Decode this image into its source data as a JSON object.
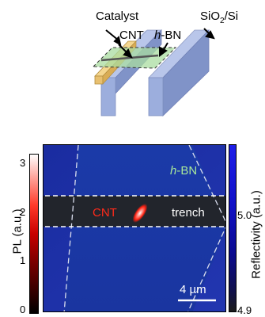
{
  "schematic": {
    "catalyst_label": "Catalyst",
    "cnt_label": "CNT",
    "hbn_label_italic": "h",
    "hbn_label_rest": "-BN",
    "substrate_main": "SiO",
    "substrate_sub": "2",
    "substrate_tail": "/Si",
    "colors": {
      "pillar": "#94a6d4",
      "catalyst": "#f2d28c",
      "hbn": "#a9dca0"
    }
  },
  "map": {
    "cnt_label": "CNT",
    "trench_label": "trench",
    "hbn_label_italic": "h",
    "hbn_label_rest": "-BN",
    "scalebar_label": "4 µm",
    "colors": {
      "substrate": "#1c2fa6",
      "trench": "#22252c",
      "cnt": "#ff2a1a",
      "hbn_text": "#a8e89a"
    }
  },
  "pl_colorbar": {
    "title": "PL (a.u.)",
    "ticks": [
      "3",
      "2",
      "1",
      "0"
    ],
    "range": [
      0,
      3.3
    ]
  },
  "reflectivity_colorbar": {
    "title": "Reflectivity (a.u.)",
    "ticks": [
      "5.0",
      "4.9"
    ],
    "range": [
      4.9,
      5.1
    ]
  }
}
